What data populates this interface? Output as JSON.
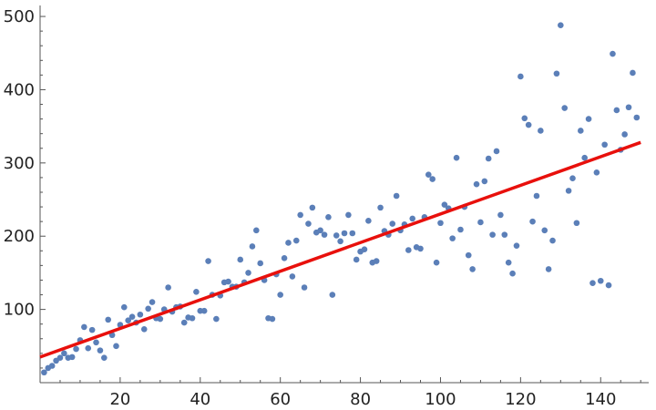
{
  "chart_data": {
    "type": "scatter",
    "title": "",
    "xlabel": "",
    "ylabel": "",
    "xlim": [
      0,
      152
    ],
    "ylim": [
      0,
      515
    ],
    "grid": false,
    "legend": "none",
    "colors": {
      "points": "#5b7fb8",
      "fit_line": "#e8100c",
      "axis": "#555555"
    },
    "x_ticks": [
      20,
      40,
      60,
      80,
      100,
      120,
      140
    ],
    "y_ticks": [
      100,
      200,
      300,
      400,
      500
    ],
    "x_tick_labels": [
      "20",
      "40",
      "60",
      "80",
      "100",
      "120",
      "140"
    ],
    "y_tick_labels": [
      "100",
      "200",
      "300",
      "400",
      "500"
    ],
    "fit_line": {
      "x": [
        0,
        150
      ],
      "y": [
        35,
        328
      ]
    },
    "series": [
      {
        "points": [
          [
            1,
            14
          ],
          [
            2,
            20
          ],
          [
            3,
            23
          ],
          [
            4,
            30
          ],
          [
            5,
            34
          ],
          [
            6,
            40
          ],
          [
            7,
            34
          ],
          [
            8,
            35
          ],
          [
            9,
            46
          ],
          [
            10,
            58
          ],
          [
            11,
            76
          ],
          [
            12,
            47
          ],
          [
            13,
            72
          ],
          [
            14,
            55
          ],
          [
            15,
            44
          ],
          [
            16,
            34
          ],
          [
            17,
            86
          ],
          [
            18,
            65
          ],
          [
            19,
            50
          ],
          [
            20,
            79
          ],
          [
            21,
            103
          ],
          [
            22,
            85
          ],
          [
            23,
            90
          ],
          [
            24,
            82
          ],
          [
            25,
            93
          ],
          [
            26,
            73
          ],
          [
            27,
            101
          ],
          [
            28,
            110
          ],
          [
            29,
            88
          ],
          [
            30,
            87
          ],
          [
            31,
            100
          ],
          [
            32,
            130
          ],
          [
            33,
            97
          ],
          [
            34,
            103
          ],
          [
            35,
            104
          ],
          [
            36,
            82
          ],
          [
            37,
            89
          ],
          [
            38,
            88
          ],
          [
            39,
            124
          ],
          [
            40,
            98
          ],
          [
            41,
            98
          ],
          [
            42,
            166
          ],
          [
            43,
            120
          ],
          [
            44,
            87
          ],
          [
            45,
            119
          ],
          [
            46,
            137
          ],
          [
            47,
            138
          ],
          [
            48,
            131
          ],
          [
            49,
            131
          ],
          [
            50,
            168
          ],
          [
            51,
            137
          ],
          [
            52,
            150
          ],
          [
            53,
            186
          ],
          [
            54,
            208
          ],
          [
            55,
            163
          ],
          [
            56,
            140
          ],
          [
            57,
            88
          ],
          [
            58,
            87
          ],
          [
            59,
            148
          ],
          [
            60,
            120
          ],
          [
            61,
            170
          ],
          [
            62,
            191
          ],
          [
            63,
            145
          ],
          [
            64,
            194
          ],
          [
            65,
            229
          ],
          [
            66,
            130
          ],
          [
            67,
            217
          ],
          [
            68,
            239
          ],
          [
            69,
            205
          ],
          [
            70,
            208
          ],
          [
            71,
            202
          ],
          [
            72,
            226
          ],
          [
            73,
            120
          ],
          [
            74,
            201
          ],
          [
            75,
            193
          ],
          [
            76,
            204
          ],
          [
            77,
            229
          ],
          [
            78,
            204
          ],
          [
            79,
            168
          ],
          [
            80,
            179
          ],
          [
            81,
            182
          ],
          [
            82,
            221
          ],
          [
            83,
            164
          ],
          [
            84,
            166
          ],
          [
            85,
            239
          ],
          [
            86,
            207
          ],
          [
            87,
            202
          ],
          [
            88,
            217
          ],
          [
            89,
            255
          ],
          [
            90,
            208
          ],
          [
            91,
            216
          ],
          [
            92,
            181
          ],
          [
            93,
            224
          ],
          [
            94,
            185
          ],
          [
            95,
            183
          ],
          [
            96,
            226
          ],
          [
            97,
            284
          ],
          [
            98,
            278
          ],
          [
            99,
            164
          ],
          [
            100,
            218
          ],
          [
            101,
            243
          ],
          [
            102,
            238
          ],
          [
            103,
            197
          ],
          [
            104,
            307
          ],
          [
            105,
            209
          ],
          [
            106,
            240
          ],
          [
            107,
            174
          ],
          [
            108,
            155
          ],
          [
            109,
            271
          ],
          [
            110,
            219
          ],
          [
            111,
            275
          ],
          [
            112,
            306
          ],
          [
            113,
            202
          ],
          [
            114,
            316
          ],
          [
            115,
            229
          ],
          [
            116,
            202
          ],
          [
            117,
            164
          ],
          [
            118,
            149
          ],
          [
            119,
            187
          ],
          [
            120,
            418
          ],
          [
            121,
            361
          ],
          [
            122,
            352
          ],
          [
            123,
            220
          ],
          [
            124,
            255
          ],
          [
            125,
            344
          ],
          [
            126,
            208
          ],
          [
            127,
            155
          ],
          [
            128,
            194
          ],
          [
            129,
            422
          ],
          [
            130,
            488
          ],
          [
            131,
            375
          ],
          [
            132,
            262
          ],
          [
            133,
            279
          ],
          [
            134,
            218
          ],
          [
            135,
            344
          ],
          [
            136,
            307
          ],
          [
            137,
            360
          ],
          [
            138,
            136
          ],
          [
            139,
            287
          ],
          [
            140,
            139
          ],
          [
            141,
            325
          ],
          [
            142,
            133
          ],
          [
            143,
            449
          ],
          [
            144,
            372
          ],
          [
            145,
            318
          ],
          [
            146,
            339
          ],
          [
            147,
            376
          ],
          [
            148,
            423
          ],
          [
            149,
            362
          ]
        ]
      }
    ]
  }
}
